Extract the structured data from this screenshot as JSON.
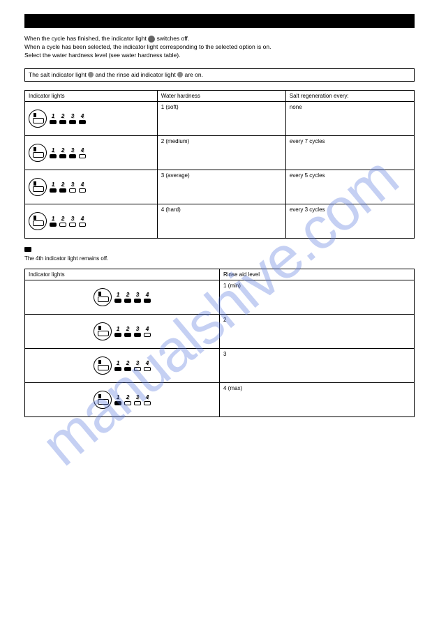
{
  "watermark": {
    "text": "manualshive.com"
  },
  "header": {
    "intro_prefix": "When the cycle has finished, the indicator light",
    "intro_suffix": "switches off.",
    "line2": "When a cycle has been selected, the indicator light corresponding to the selected option is on.",
    "line3": "Select the water hardness level (see water hardness table).",
    "note": "The salt indicator light",
    "note_suffix": "and the rinse aid indicator light",
    "note_end": "are on."
  },
  "table1": {
    "headers": [
      "Indicator lights",
      "Water hardness",
      "Salt regeneration every:"
    ],
    "rows": [
      {
        "leds": [
          true,
          true,
          true,
          true
        ],
        "led4_style": "on",
        "hardness": "1 (soft)",
        "regen": "none"
      },
      {
        "leds": [
          true,
          true,
          true,
          false
        ],
        "hardness": "2 (medium)",
        "regen": "every 7 cycles"
      },
      {
        "leds": [
          true,
          true,
          false,
          false
        ],
        "hardness": "3 (average)",
        "regen": "every 5 cycles"
      },
      {
        "leds": [
          true,
          false,
          false,
          false
        ],
        "hardness": "4 (hard)",
        "regen": "every 3 cycles"
      }
    ]
  },
  "mid": {
    "marker": "■",
    "after": "The 4th indicator light remains off."
  },
  "table2": {
    "headers": [
      "Indicator lights",
      "Rinse aid level"
    ],
    "rows": [
      {
        "leds": [
          true,
          true,
          true,
          true
        ],
        "level": "1 (min)"
      },
      {
        "leds": [
          true,
          true,
          true,
          false
        ],
        "level": "2"
      },
      {
        "leds": [
          true,
          true,
          false,
          false
        ],
        "level": "3"
      },
      {
        "leds": [
          true,
          false,
          false,
          false
        ],
        "level": "4 (max)"
      }
    ]
  },
  "colors": {
    "text": "#000000",
    "bg": "#ffffff",
    "watermark": "rgba(88,120,220,0.35)"
  }
}
